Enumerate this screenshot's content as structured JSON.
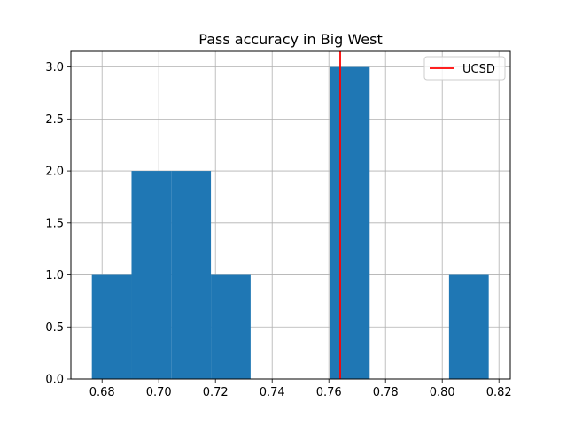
{
  "chart_data": {
    "type": "bar",
    "title": "Pass accuracy in Big West",
    "xlabel": "",
    "ylabel": "",
    "xlim": [
      0.669,
      0.824
    ],
    "ylim": [
      0,
      3.15
    ],
    "grid": true,
    "x_ticks": [
      0.68,
      0.7,
      0.72,
      0.74,
      0.76,
      0.78,
      0.8,
      0.82
    ],
    "x_tick_labels": [
      "0.68",
      "0.70",
      "0.72",
      "0.74",
      "0.76",
      "0.78",
      "0.80",
      "0.82"
    ],
    "y_ticks": [
      0.0,
      0.5,
      1.0,
      1.5,
      2.0,
      2.5,
      3.0
    ],
    "y_tick_labels": [
      "0.0",
      "0.5",
      "1.0",
      "1.5",
      "2.0",
      "2.5",
      "3.0"
    ],
    "bin_edges": [
      0.6764,
      0.6904,
      0.7044,
      0.7184,
      0.7324,
      0.7464,
      0.7604,
      0.7744,
      0.7884,
      0.8024,
      0.8164
    ],
    "counts": [
      1,
      2,
      2,
      1,
      0,
      0,
      3,
      0,
      0,
      1
    ],
    "bar_color": "#1f77b4",
    "reference_line": {
      "name": "UCSD",
      "x": 0.764,
      "color": "#ff0000"
    },
    "legend": {
      "position": "top-right",
      "entries": [
        "UCSD"
      ]
    }
  }
}
